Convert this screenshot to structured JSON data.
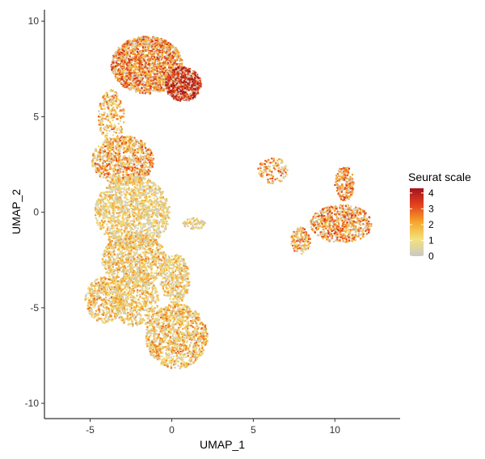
{
  "chart_data": {
    "type": "scatter",
    "title": "",
    "xlabel": "UMAP_1",
    "ylabel": "UMAP_2",
    "xlim": [
      -7.8,
      14.0
    ],
    "ylim": [
      -10.8,
      10.6
    ],
    "x_ticks": [
      -5,
      0,
      5,
      10
    ],
    "y_ticks": [
      -10,
      -5,
      0,
      5,
      10
    ],
    "grid": false,
    "legend": {
      "title": "Seurat scale",
      "placement": "right",
      "min": 0,
      "max": 4.3,
      "ticks": [
        0,
        1,
        2,
        3,
        4
      ],
      "colors": [
        "#c8c8c8",
        "#f3e27a",
        "#f6a62c",
        "#e4431e",
        "#a3141c"
      ]
    },
    "points_note_colors": {
      "hotspot": "#c9201a"
    },
    "clusters": [
      {
        "cx": -1.5,
        "cy": 7.7,
        "rx": 2.2,
        "ry": 1.5,
        "level": 2.6,
        "n": 1800
      },
      {
        "cx": 0.7,
        "cy": 6.7,
        "rx": 1.1,
        "ry": 0.9,
        "level": 3.6,
        "n": 700
      },
      {
        "cx": -3.7,
        "cy": 5.0,
        "rx": 0.8,
        "ry": 1.4,
        "level": 1.9,
        "n": 250
      },
      {
        "cx": -3.0,
        "cy": 2.7,
        "rx": 1.9,
        "ry": 1.3,
        "level": 2.2,
        "n": 900
      },
      {
        "cx": -2.4,
        "cy": 0.0,
        "rx": 2.3,
        "ry": 1.9,
        "level": 1.3,
        "n": 1500
      },
      {
        "cx": -2.3,
        "cy": -2.5,
        "rx": 2.0,
        "ry": 1.4,
        "level": 1.6,
        "n": 1000
      },
      {
        "cx": -4.1,
        "cy": -4.6,
        "rx": 1.2,
        "ry": 1.2,
        "level": 1.8,
        "n": 500
      },
      {
        "cx": -2.2,
        "cy": -4.6,
        "rx": 1.4,
        "ry": 1.4,
        "level": 1.5,
        "n": 600
      },
      {
        "cx": 0.3,
        "cy": -6.5,
        "rx": 1.9,
        "ry": 1.7,
        "level": 1.8,
        "n": 1200
      },
      {
        "cx": 0.2,
        "cy": -3.5,
        "rx": 0.9,
        "ry": 1.3,
        "level": 1.4,
        "n": 450
      },
      {
        "cx": 10.4,
        "cy": -0.6,
        "rx": 1.9,
        "ry": 1.0,
        "level": 2.5,
        "n": 700
      },
      {
        "cx": 10.6,
        "cy": 1.5,
        "rx": 0.6,
        "ry": 0.9,
        "level": 2.4,
        "n": 200
      },
      {
        "cx": 7.9,
        "cy": -1.5,
        "rx": 0.6,
        "ry": 0.7,
        "level": 2.1,
        "n": 150
      },
      {
        "cx": 6.2,
        "cy": 2.2,
        "rx": 0.9,
        "ry": 0.7,
        "level": 2.3,
        "n": 120
      },
      {
        "cx": 1.4,
        "cy": -0.6,
        "rx": 0.7,
        "ry": 0.3,
        "level": 1.2,
        "n": 80
      }
    ]
  }
}
